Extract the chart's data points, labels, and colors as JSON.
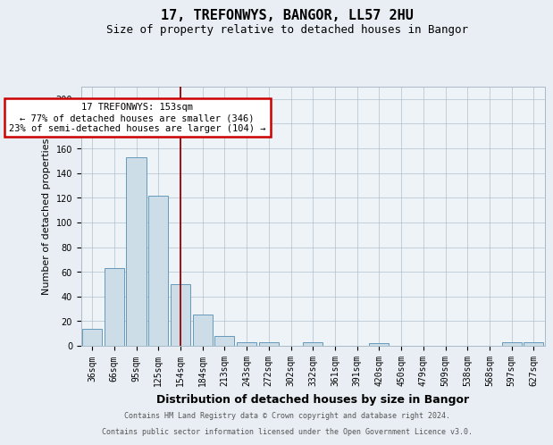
{
  "title_line1": "17, TREFONWYS, BANGOR, LL57 2HU",
  "title_line2": "Size of property relative to detached houses in Bangor",
  "xlabel": "Distribution of detached houses by size in Bangor",
  "ylabel": "Number of detached properties",
  "categories": [
    "36sqm",
    "66sqm",
    "95sqm",
    "125sqm",
    "154sqm",
    "184sqm",
    "213sqm",
    "243sqm",
    "272sqm",
    "302sqm",
    "332sqm",
    "361sqm",
    "391sqm",
    "420sqm",
    "450sqm",
    "479sqm",
    "509sqm",
    "538sqm",
    "568sqm",
    "597sqm",
    "627sqm"
  ],
  "values": [
    14,
    63,
    153,
    122,
    50,
    25,
    8,
    3,
    3,
    0,
    3,
    0,
    0,
    2,
    0,
    0,
    0,
    0,
    0,
    3,
    3
  ],
  "bar_color": "#ccdde8",
  "bar_edge_color": "#6699bb",
  "red_line_x": 4,
  "annotation_line1": "17 TREFONWYS: 153sqm",
  "annotation_line2": "← 77% of detached houses are smaller (346)",
  "annotation_line3": "23% of semi-detached houses are larger (104) →",
  "annotation_box_color": "#ffffff",
  "annotation_box_edge_color": "#cc0000",
  "ylim": [
    0,
    210
  ],
  "yticks": [
    0,
    20,
    40,
    60,
    80,
    100,
    120,
    140,
    160,
    180,
    200
  ],
  "footer_line1": "Contains HM Land Registry data © Crown copyright and database right 2024.",
  "footer_line2": "Contains public sector information licensed under the Open Government Licence v3.0.",
  "background_color": "#e8eef4",
  "plot_bg_color": "#eef3f8",
  "title_fontsize": 11,
  "subtitle_fontsize": 9,
  "tick_fontsize": 7,
  "ylabel_fontsize": 8,
  "xlabel_fontsize": 9,
  "annotation_fontsize": 7.5,
  "footer_fontsize": 6
}
